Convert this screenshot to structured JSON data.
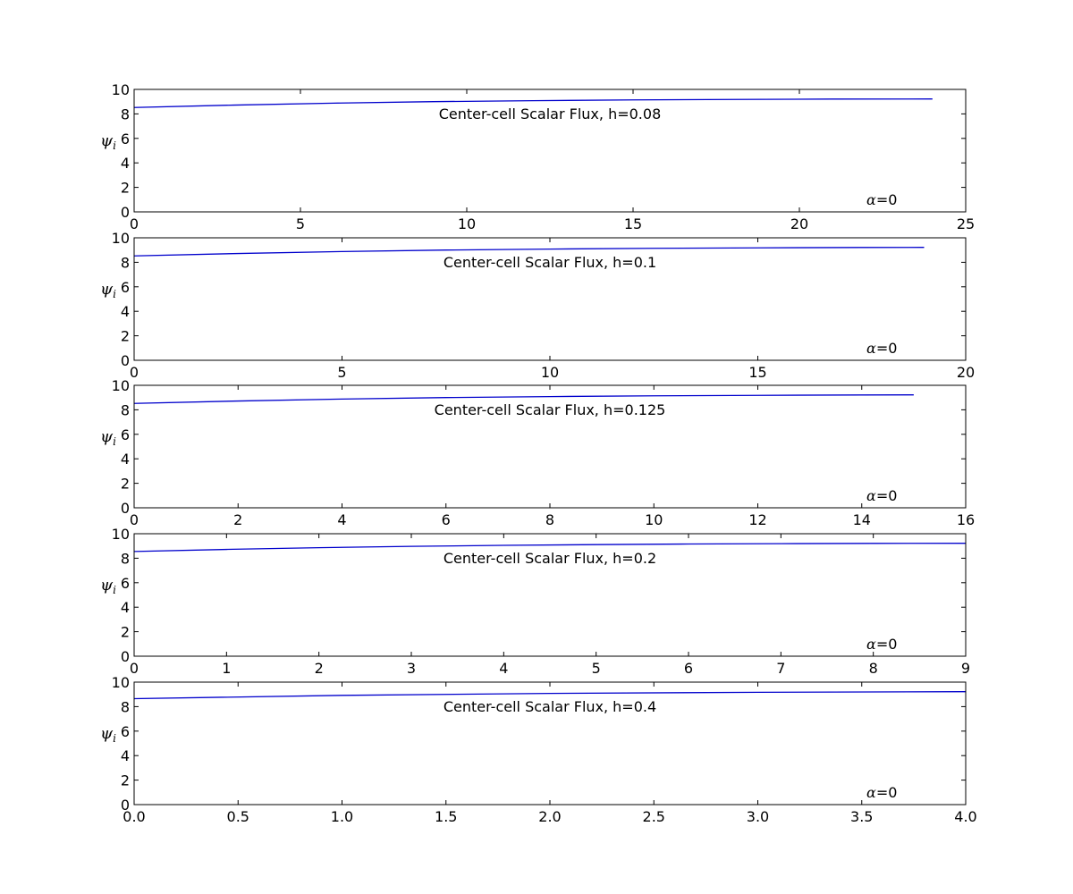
{
  "chart_data": [
    {
      "type": "line",
      "title": "Center-cell Scalar Flux, h=0.08",
      "ylabel": "ψ",
      "ylabel_subscript": "i",
      "annotation": {
        "greek": "α",
        "text": "=0"
      },
      "xlim": [
        0,
        25
      ],
      "ylim": [
        0,
        10
      ],
      "xticks": [
        0,
        5,
        10,
        15,
        20,
        25
      ],
      "xtick_labels": [
        "0",
        "5",
        "10",
        "15",
        "20",
        "25"
      ],
      "yticks": [
        0,
        2,
        4,
        6,
        8,
        10
      ],
      "ytick_labels": [
        "0",
        "2",
        "4",
        "6",
        "8",
        "10"
      ],
      "line_color": "#0000cc",
      "series": [
        {
          "x": [
            0,
            3,
            6,
            9,
            12,
            15,
            18,
            21,
            24
          ],
          "y": [
            8.52,
            8.72,
            8.88,
            9.0,
            9.08,
            9.14,
            9.18,
            9.21,
            9.22
          ]
        }
      ]
    },
    {
      "type": "line",
      "title": "Center-cell Scalar Flux, h=0.1",
      "ylabel": "ψ",
      "ylabel_subscript": "i",
      "annotation": {
        "greek": "α",
        "text": "=0"
      },
      "xlim": [
        0,
        20
      ],
      "ylim": [
        0,
        10
      ],
      "xticks": [
        0,
        5,
        10,
        15,
        20
      ],
      "xtick_labels": [
        "0",
        "5",
        "10",
        "15",
        "20"
      ],
      "yticks": [
        0,
        2,
        4,
        6,
        8,
        10
      ],
      "ytick_labels": [
        "0",
        "2",
        "4",
        "6",
        "8",
        "10"
      ],
      "line_color": "#0000cc",
      "series": [
        {
          "x": [
            0,
            2.5,
            5,
            7.5,
            10,
            12.5,
            15,
            17.5,
            19
          ],
          "y": [
            8.52,
            8.72,
            8.88,
            9.0,
            9.08,
            9.14,
            9.18,
            9.21,
            9.22
          ]
        }
      ]
    },
    {
      "type": "line",
      "title": "Center-cell Scalar Flux, h=0.125",
      "ylabel": "ψ",
      "ylabel_subscript": "i",
      "annotation": {
        "greek": "α",
        "text": "=0"
      },
      "xlim": [
        0,
        16
      ],
      "ylim": [
        0,
        10
      ],
      "xticks": [
        0,
        2,
        4,
        6,
        8,
        10,
        12,
        14,
        16
      ],
      "xtick_labels": [
        "0",
        "2",
        "4",
        "6",
        "8",
        "10",
        "12",
        "14",
        "16"
      ],
      "yticks": [
        0,
        2,
        4,
        6,
        8,
        10
      ],
      "ytick_labels": [
        "0",
        "2",
        "4",
        "6",
        "8",
        "10"
      ],
      "line_color": "#0000cc",
      "series": [
        {
          "x": [
            0,
            2,
            4,
            6,
            8,
            10,
            12,
            14,
            15
          ],
          "y": [
            8.52,
            8.72,
            8.88,
            9.0,
            9.08,
            9.14,
            9.18,
            9.21,
            9.22
          ]
        }
      ]
    },
    {
      "type": "line",
      "title": "Center-cell Scalar Flux, h=0.2",
      "ylabel": "ψ",
      "ylabel_subscript": "i",
      "annotation": {
        "greek": "α",
        "text": "=0"
      },
      "xlim": [
        0,
        9
      ],
      "ylim": [
        0,
        10
      ],
      "xticks": [
        0,
        1,
        2,
        3,
        4,
        5,
        6,
        7,
        8,
        9
      ],
      "xtick_labels": [
        "0",
        "1",
        "2",
        "3",
        "4",
        "5",
        "6",
        "7",
        "8",
        "9"
      ],
      "yticks": [
        0,
        2,
        4,
        6,
        8,
        10
      ],
      "ytick_labels": [
        "0",
        "2",
        "4",
        "6",
        "8",
        "10"
      ],
      "line_color": "#0000cc",
      "series": [
        {
          "x": [
            0,
            1,
            2,
            3,
            4,
            5,
            6,
            7,
            8,
            9
          ],
          "y": [
            8.55,
            8.72,
            8.86,
            8.97,
            9.05,
            9.11,
            9.16,
            9.19,
            9.21,
            9.22
          ]
        }
      ]
    },
    {
      "type": "line",
      "title": "Center-cell Scalar Flux, h=0.4",
      "ylabel": "ψ",
      "ylabel_subscript": "i",
      "annotation": {
        "greek": "α",
        "text": "=0"
      },
      "xlim": [
        0,
        4
      ],
      "ylim": [
        0,
        10
      ],
      "xticks": [
        0,
        0.5,
        1,
        1.5,
        2,
        2.5,
        3,
        3.5,
        4
      ],
      "xtick_labels": [
        "0.0",
        "0.5",
        "1.0",
        "1.5",
        "2.0",
        "2.5",
        "3.0",
        "3.5",
        "4.0"
      ],
      "yticks": [
        0,
        2,
        4,
        6,
        8,
        10
      ],
      "ytick_labels": [
        "0",
        "2",
        "4",
        "6",
        "8",
        "10"
      ],
      "line_color": "#0000cc",
      "series": [
        {
          "x": [
            0,
            1,
            2,
            3,
            4
          ],
          "y": [
            8.65,
            8.92,
            9.08,
            9.17,
            9.22
          ]
        }
      ]
    }
  ]
}
